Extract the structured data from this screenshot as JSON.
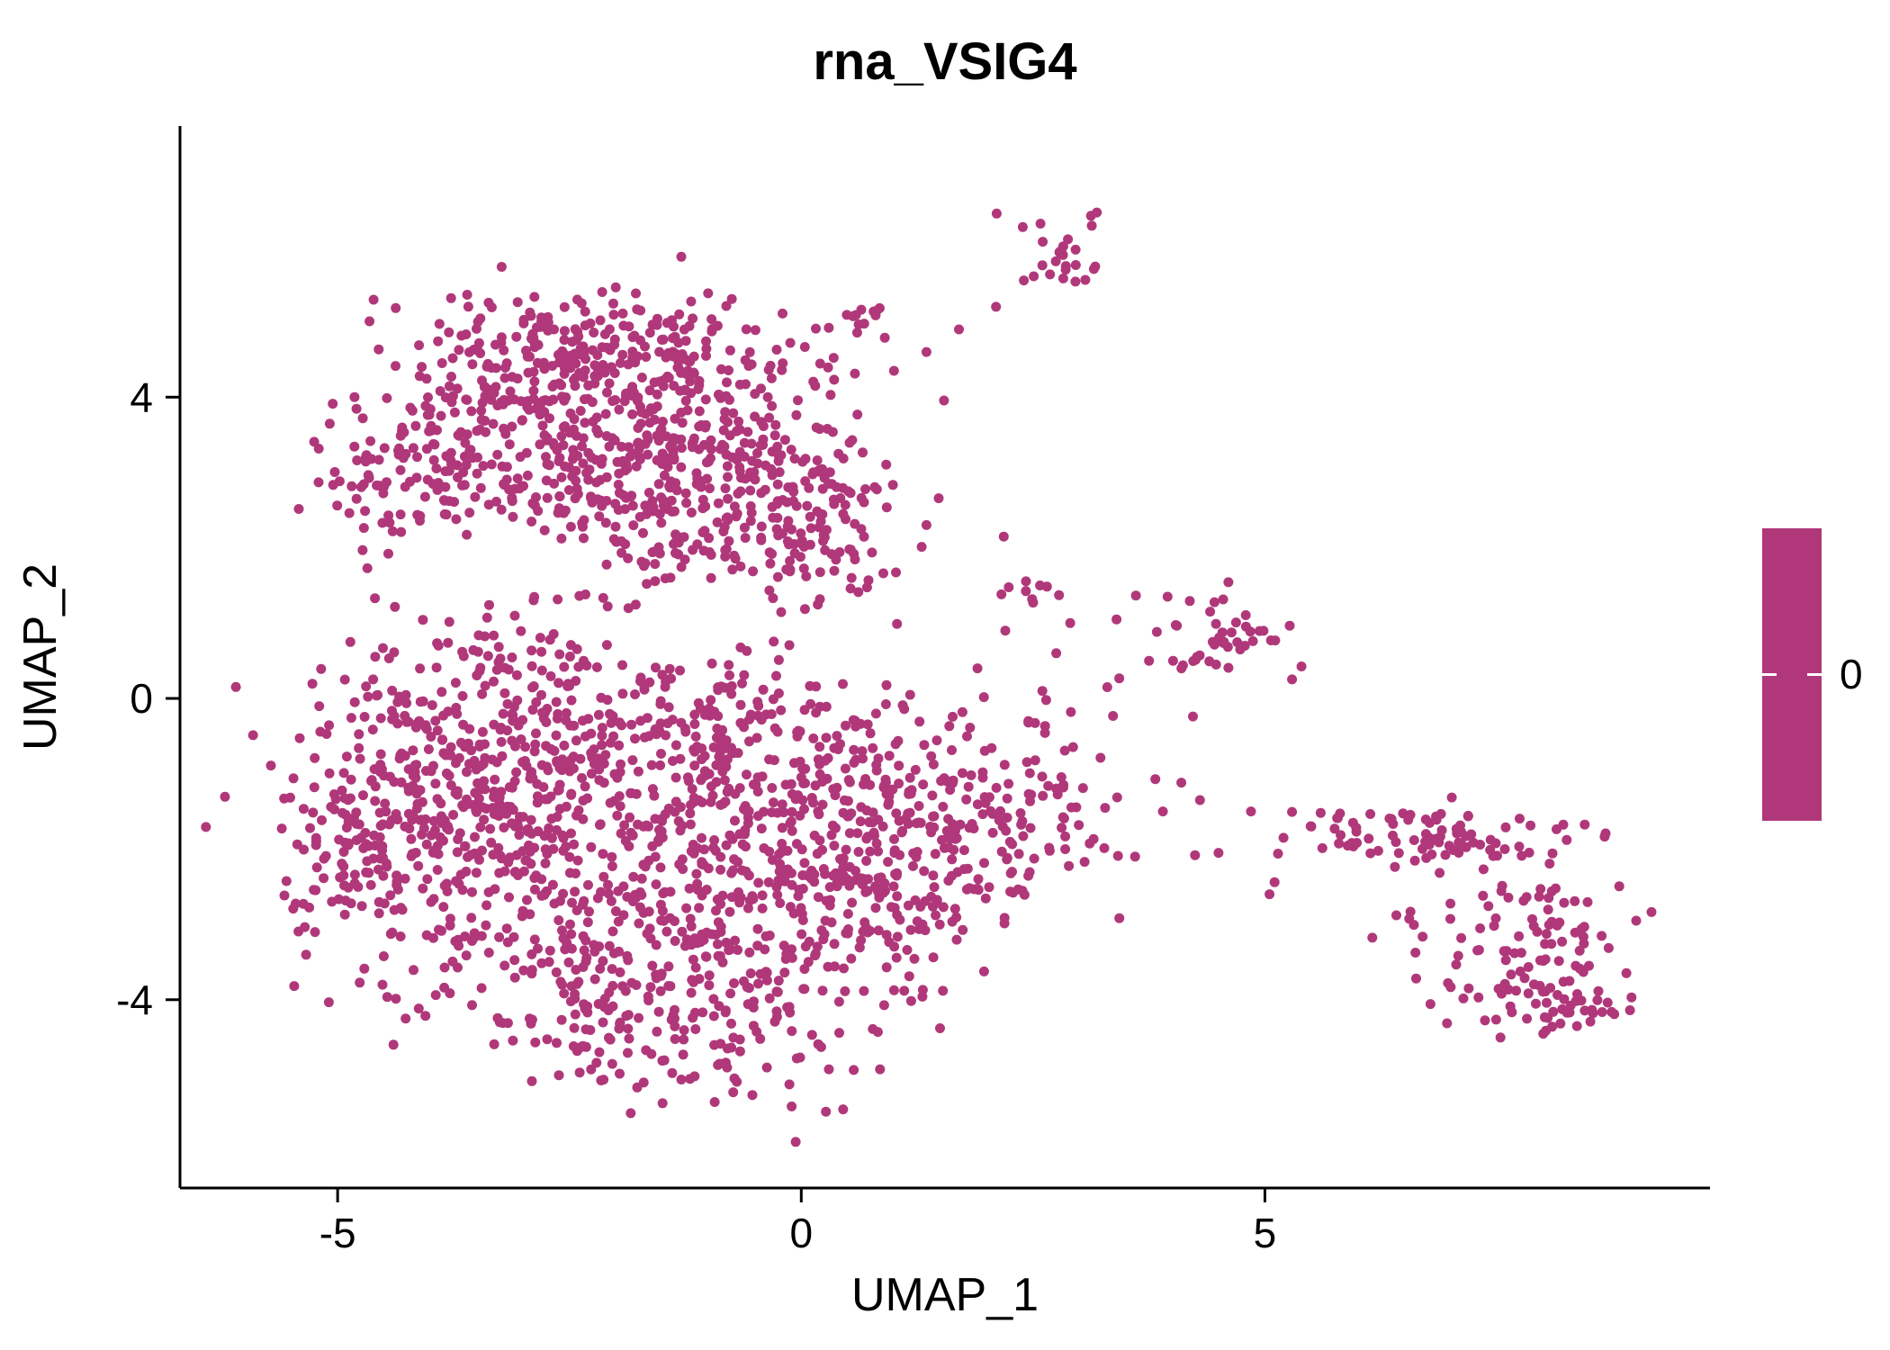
{
  "title": "rna_VSIG4",
  "colors": {
    "point": "#B0387A",
    "axis": "#000000",
    "background": "#FFFFFF",
    "legend_tick": "#FFFFFF"
  },
  "legend": {
    "type": "colorbar",
    "position": "right",
    "label": "0",
    "color": "#B0387A"
  },
  "chart_data": {
    "type": "scatter",
    "title": "rna_VSIG4",
    "xlabel": "UMAP_1",
    "ylabel": "UMAP_2",
    "xlim": [
      -6.7,
      9.8
    ],
    "ylim": [
      -6.5,
      7.6
    ],
    "x_ticks": [
      -5,
      0,
      5
    ],
    "y_ticks": [
      -4,
      0,
      4
    ],
    "grid": false,
    "legend_position": "right",
    "point_color": "#B0387A",
    "n_points_approx": 3000,
    "clusters": [
      {
        "name": "upper-blob-core",
        "cx": -2.6,
        "cy": 3.7,
        "sx": 1.15,
        "sy": 0.75,
        "n": 420
      },
      {
        "name": "upper-blob-top-ridge",
        "cx": -2.0,
        "cy": 4.6,
        "sx": 1.05,
        "sy": 0.35,
        "n": 160
      },
      {
        "name": "upper-blob-right",
        "cx": -0.7,
        "cy": 2.8,
        "sx": 0.85,
        "sy": 0.75,
        "n": 200
      },
      {
        "name": "upper-blob-left-arm",
        "cx": -4.35,
        "cy": 3.0,
        "sx": 0.45,
        "sy": 0.55,
        "n": 70
      },
      {
        "name": "upper-blob-fringe",
        "cx": -1.6,
        "cy": 2.2,
        "sx": 0.9,
        "sy": 0.5,
        "n": 90
      },
      {
        "name": "upper-blob-right-edge",
        "cx": 0.3,
        "cy": 2.2,
        "sx": 0.45,
        "sy": 0.6,
        "n": 60
      },
      {
        "name": "lower-blob-left",
        "cx": -3.6,
        "cy": -1.4,
        "sx": 0.95,
        "sy": 1.1,
        "n": 330
      },
      {
        "name": "lower-blob-center",
        "cx": -2.2,
        "cy": -2.4,
        "sx": 1.15,
        "sy": 1.1,
        "n": 330
      },
      {
        "name": "lower-blob-bottom",
        "cx": -1.2,
        "cy": -4.1,
        "sx": 0.95,
        "sy": 0.6,
        "n": 170
      },
      {
        "name": "lower-blob-upper",
        "cx": -2.6,
        "cy": -0.2,
        "sx": 1.15,
        "sy": 0.7,
        "n": 200
      },
      {
        "name": "lower-blob-mid",
        "cx": -0.3,
        "cy": -2.2,
        "sx": 0.8,
        "sy": 1.0,
        "n": 170
      },
      {
        "name": "lower-blob-left-edge",
        "cx": -4.7,
        "cy": -1.9,
        "sx": 0.45,
        "sy": 0.8,
        "n": 100
      },
      {
        "name": "lower-blob-inner",
        "cx": -0.9,
        "cy": -0.6,
        "sx": 0.7,
        "sy": 0.7,
        "n": 90
      },
      {
        "name": "lower-blob-inner2",
        "cx": 0.4,
        "cy": -0.9,
        "sx": 0.5,
        "sy": 0.6,
        "n": 60
      },
      {
        "name": "right-lobe",
        "cx": 1.3,
        "cy": -1.9,
        "sx": 0.75,
        "sy": 0.75,
        "n": 150
      },
      {
        "name": "right-lobe-edge",
        "cx": 2.1,
        "cy": -1.6,
        "sx": 0.5,
        "sy": 0.6,
        "n": 70
      },
      {
        "name": "right-lobe-bottom",
        "cx": 0.9,
        "cy": -3.0,
        "sx": 0.6,
        "sy": 0.5,
        "n": 60
      },
      {
        "name": "bridge-sparse",
        "cx": 3.1,
        "cy": -1.1,
        "sx": 0.75,
        "sy": 0.7,
        "n": 26
      },
      {
        "name": "top-small-cluster",
        "cx": 2.85,
        "cy": 6.0,
        "sx": 0.22,
        "sy": 0.28,
        "n": 24
      },
      {
        "name": "top-mid-small",
        "cx": 0.62,
        "cy": 5.05,
        "sx": 0.18,
        "sy": 0.12,
        "n": 11
      },
      {
        "name": "mid-right-cluster",
        "cx": 4.55,
        "cy": 0.8,
        "sx": 0.38,
        "sy": 0.33,
        "n": 42
      },
      {
        "name": "small-clump",
        "cx": 2.42,
        "cy": 1.45,
        "sx": 0.17,
        "sy": 0.2,
        "n": 9
      },
      {
        "name": "far-right-ridge",
        "cx": 6.7,
        "cy": -1.85,
        "sx": 0.85,
        "sy": 0.22,
        "n": 85
      },
      {
        "name": "far-right-lower",
        "cx": 7.7,
        "cy": -3.3,
        "sx": 0.6,
        "sy": 0.55,
        "n": 110
      },
      {
        "name": "far-right-tail",
        "cx": 8.35,
        "cy": -4.05,
        "sx": 0.3,
        "sy": 0.2,
        "n": 28
      }
    ],
    "holes": [
      {
        "cx": -1.35,
        "cy": 0.9,
        "rx": 0.6,
        "ry": 0.5
      },
      {
        "cx": -3.3,
        "cy": 1.75,
        "rx": 1.2,
        "ry": 0.4
      }
    ],
    "extra_points": [
      [
        1.0,
        4.35
      ],
      [
        1.35,
        4.6
      ],
      [
        1.7,
        4.9
      ],
      [
        2.1,
        5.2
      ],
      [
        2.4,
        5.55
      ],
      [
        2.6,
        5.75
      ],
      [
        0.15,
        4.15
      ],
      [
        -0.2,
        4.45
      ],
      [
        3.4,
        1.05
      ],
      [
        3.75,
        0.5
      ],
      [
        3.3,
        0.15
      ],
      [
        2.75,
        0.6
      ],
      [
        2.9,
        1.0
      ],
      [
        2.45,
        -0.3
      ],
      [
        2.6,
        0.1
      ],
      [
        3.6,
        -2.1
      ],
      [
        3.9,
        -1.5
      ],
      [
        4.3,
        -1.35
      ],
      [
        4.5,
        -2.05
      ],
      [
        4.85,
        -1.5
      ],
      [
        5.2,
        -1.85
      ],
      [
        5.5,
        -1.7
      ],
      [
        5.05,
        -2.6
      ],
      [
        3.95,
        1.35
      ],
      [
        4.1,
        0.4
      ],
      [
        2.2,
        0.9
      ],
      [
        1.9,
        0.4
      ],
      [
        -1.7,
        -5.1
      ],
      [
        -1.2,
        -5.05
      ],
      [
        -0.8,
        -4.9
      ]
    ],
    "colorbar": {
      "label": "0",
      "color": "#B0387A"
    }
  }
}
